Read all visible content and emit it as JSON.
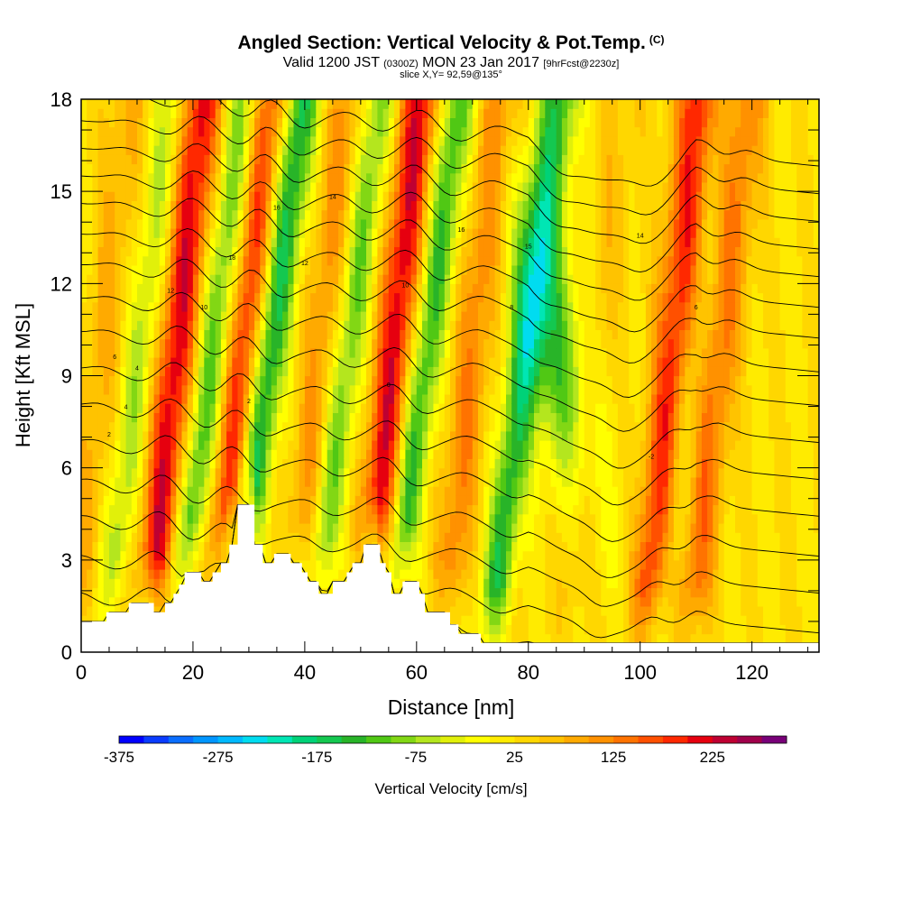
{
  "header": {
    "title": "Angled Section: Vertical Velocity & Pot.Temp.",
    "title_mark": "(C)",
    "valid_prefix": "Valid 1200 JST",
    "valid_utc": "(0300Z)",
    "valid_date": "MON 23 Jan 2017",
    "forecast": "[9hrFcst@2230z]",
    "slice": "slice X,Y= 92,59@135°"
  },
  "chart_data": {
    "type": "heatmap",
    "xlabel": "Distance [nm]",
    "ylabel": "Height [Kft MSL]",
    "xlim": [
      0,
      132
    ],
    "ylim": [
      0,
      18
    ],
    "x_ticks": [
      0,
      20,
      40,
      60,
      80,
      100,
      120
    ],
    "y_ticks": [
      0,
      3,
      6,
      9,
      12,
      15,
      18
    ],
    "colorbar": {
      "label": "Vertical Velocity [cm/s]",
      "tick_labels": [
        "-375",
        "-275",
        "-175",
        "-75",
        "25",
        "125",
        "225"
      ],
      "levels": [
        -375,
        -350,
        -325,
        -300,
        -275,
        -250,
        -225,
        -200,
        -175,
        -150,
        -125,
        -100,
        -75,
        -50,
        -25,
        0,
        25,
        50,
        75,
        100,
        125,
        150,
        175,
        200,
        225,
        250,
        275,
        300
      ],
      "colors": [
        "#0000ff",
        "#0a3cff",
        "#0a6eff",
        "#0096ff",
        "#00b9ff",
        "#00dcf0",
        "#00e6b4",
        "#00d278",
        "#14c850",
        "#28b428",
        "#50c814",
        "#82d714",
        "#b4e61e",
        "#e1f00a",
        "#ffff00",
        "#ffeb00",
        "#ffd700",
        "#ffc300",
        "#ffaa00",
        "#ff9100",
        "#ff7300",
        "#ff5000",
        "#ff2800",
        "#e6000f",
        "#be0032",
        "#a0004b",
        "#780078"
      ]
    },
    "updrafts_cm_s": [
      {
        "x": 2,
        "max": 60
      },
      {
        "x": 15,
        "max": 200
      },
      {
        "x": 27,
        "max": 180
      },
      {
        "x": 41,
        "max": 90
      },
      {
        "x": 54,
        "max": 200
      },
      {
        "x": 68,
        "max": 100
      },
      {
        "x": 90,
        "max": 40
      },
      {
        "x": 104,
        "max": 180
      },
      {
        "x": 112,
        "max": 120
      }
    ],
    "downdrafts_cm_s": [
      {
        "x": 8,
        "min": -90
      },
      {
        "x": 21,
        "min": -150
      },
      {
        "x": 31,
        "min": -200
      },
      {
        "x": 45,
        "min": -130
      },
      {
        "x": 59,
        "min": -160
      },
      {
        "x": 77,
        "min": -170
      },
      {
        "x": 94,
        "min": -140
      },
      {
        "x": 107,
        "min": -60
      }
    ],
    "theta_contour_labels": [
      "18",
      "14",
      "16",
      "16",
      "15",
      "14",
      "12",
      "10",
      "12",
      "10",
      "8",
      "6",
      "6",
      "4",
      "2",
      "4",
      "2",
      "0",
      "-2"
    ],
    "terrain_kft": [
      [
        0,
        1.0
      ],
      [
        4.5,
        1.0
      ],
      [
        4.5,
        1.3
      ],
      [
        8.5,
        1.3
      ],
      [
        8.5,
        1.6
      ],
      [
        13,
        1.6
      ],
      [
        13,
        1.3
      ],
      [
        15,
        1.3
      ],
      [
        15,
        1.6
      ],
      [
        16.5,
        1.6
      ],
      [
        16.5,
        1.9
      ],
      [
        17.5,
        1.9
      ],
      [
        17.5,
        2.2
      ],
      [
        18.5,
        2.2
      ],
      [
        18.5,
        2.6
      ],
      [
        21.5,
        2.6
      ],
      [
        21.5,
        2.3
      ],
      [
        23.5,
        2.3
      ],
      [
        23.5,
        2.6
      ],
      [
        25,
        2.6
      ],
      [
        25,
        2.9
      ],
      [
        26.5,
        2.9
      ],
      [
        26.5,
        3.5
      ],
      [
        28,
        3.5
      ],
      [
        28,
        4.8
      ],
      [
        31,
        4.8
      ],
      [
        31,
        3.5
      ],
      [
        32.5,
        3.5
      ],
      [
        32.5,
        2.9
      ],
      [
        34.5,
        2.9
      ],
      [
        34.5,
        3.2
      ],
      [
        37.5,
        3.2
      ],
      [
        37.5,
        2.9
      ],
      [
        39.5,
        2.9
      ],
      [
        39.5,
        2.6
      ],
      [
        40.5,
        2.6
      ],
      [
        40.5,
        2.3
      ],
      [
        42.5,
        2.3
      ],
      [
        42.5,
        1.9
      ],
      [
        45,
        1.9
      ],
      [
        45,
        2.3
      ],
      [
        47.5,
        2.3
      ],
      [
        47.5,
        2.6
      ],
      [
        48.5,
        2.6
      ],
      [
        48.5,
        2.9
      ],
      [
        50.5,
        2.9
      ],
      [
        50.5,
        3.5
      ],
      [
        53.5,
        3.5
      ],
      [
        53.5,
        2.9
      ],
      [
        54.5,
        2.9
      ],
      [
        54.5,
        2.6
      ],
      [
        55.5,
        2.6
      ],
      [
        55.5,
        1.9
      ],
      [
        57.5,
        1.9
      ],
      [
        57.5,
        2.3
      ],
      [
        60.5,
        2.3
      ],
      [
        60.5,
        1.9
      ],
      [
        61.5,
        1.9
      ],
      [
        61.5,
        1.3
      ],
      [
        66,
        1.3
      ],
      [
        66,
        0.9
      ],
      [
        67.5,
        0.9
      ],
      [
        67.5,
        0.6
      ],
      [
        71.5,
        0.6
      ],
      [
        71.5,
        0.3
      ],
      [
        132,
        0.3
      ]
    ]
  }
}
